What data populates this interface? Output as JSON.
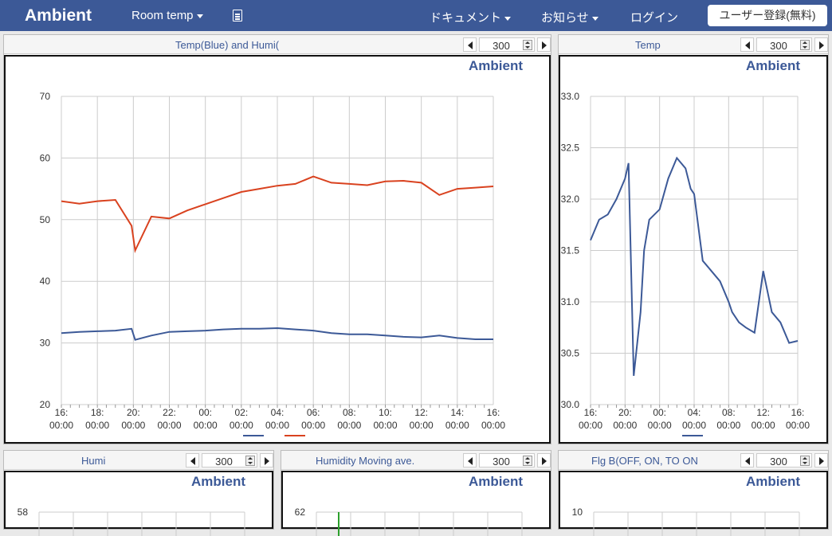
{
  "navbar": {
    "brand": "Ambient",
    "channel": "Room temp",
    "docs": "ドキュメント",
    "news": "お知らせ",
    "login": "ログイン",
    "signup": "ユーザー登録(無料)",
    "doc_icon": "document-icon"
  },
  "logo_text": "Ambient",
  "panels": [
    {
      "title": "Temp(Blue) and Humi(",
      "count": "300"
    },
    {
      "title": "Temp",
      "count": "300"
    },
    {
      "title": "Humi",
      "count": "300"
    },
    {
      "title": "Humidity Moving ave.",
      "count": "300"
    },
    {
      "title": "Flg B(OFF, ON, TO ON",
      "count": "300"
    }
  ],
  "colors": {
    "navbar": "#3c5997",
    "blue_series": "#3c5997",
    "red_series": "#d9421f",
    "green": "#2ca02c"
  },
  "chart_data": [
    {
      "type": "line",
      "title": "Temp(Blue) and Humi(",
      "ylim": [
        20,
        70
      ],
      "yticks": [
        "70",
        "60",
        "50",
        "40",
        "30",
        "20"
      ],
      "xticks": [
        "16:\n00:00",
        "18:\n00:00",
        "20:\n00:00",
        "22:\n00:00",
        "00:\n00:00",
        "02:\n00:00",
        "04:\n00:00",
        "06:\n00:00",
        "08:\n00:00",
        "10:\n00:00",
        "12:\n00:00",
        "14:\n00:00",
        "16:\n00:00"
      ],
      "x": [
        0,
        0.5,
        1,
        1.5,
        1.95,
        2.05,
        2.5,
        3,
        3.5,
        4,
        4.5,
        5,
        5.5,
        6,
        6.5,
        7,
        7.5,
        8,
        8.5,
        9,
        9.5,
        10,
        10.5,
        11,
        11.5,
        12
      ],
      "series": [
        {
          "color": "#3c5997",
          "values": [
            31.6,
            31.8,
            31.9,
            32.0,
            32.3,
            30.5,
            31.2,
            31.8,
            31.9,
            32.0,
            32.2,
            32.3,
            32.3,
            32.4,
            32.2,
            32.0,
            31.6,
            31.4,
            31.4,
            31.2,
            31.0,
            30.9,
            31.2,
            30.8,
            30.6,
            30.6
          ]
        },
        {
          "color": "#d9421f",
          "values": [
            53.0,
            52.6,
            53.0,
            53.2,
            49.0,
            45.0,
            50.5,
            50.2,
            51.5,
            52.5,
            53.5,
            54.5,
            55.0,
            55.5,
            55.8,
            57.0,
            56.0,
            55.8,
            55.6,
            56.2,
            56.3,
            56.0,
            54.0,
            55.0,
            55.2,
            55.4
          ]
        }
      ]
    },
    {
      "type": "line",
      "title": "Temp",
      "ylim": [
        30.0,
        33.0
      ],
      "yticks": [
        "33.0",
        "32.5",
        "32.0",
        "31.5",
        "31.0",
        "30.5",
        "30.0"
      ],
      "xticks": [
        "16:\n00:00",
        "20:\n00:00",
        "00:\n00:00",
        "04:\n00:00",
        "08:\n00:00",
        "12:\n00:00",
        "16:\n00:00"
      ],
      "x": [
        0,
        0.5,
        1,
        1.5,
        2,
        2.2,
        2.5,
        2.9,
        3.1,
        3.4,
        4,
        4.5,
        5,
        5.5,
        5.8,
        6,
        6.5,
        7,
        7.5,
        8,
        8.2,
        8.6,
        9,
        9.5,
        10,
        10.5,
        11,
        11.5,
        12
      ],
      "series": [
        {
          "color": "#3c5997",
          "values": [
            31.6,
            31.8,
            31.85,
            32.0,
            32.2,
            32.35,
            30.28,
            30.9,
            31.5,
            31.8,
            31.9,
            32.2,
            32.4,
            32.3,
            32.1,
            32.05,
            31.4,
            31.3,
            31.2,
            31.0,
            30.9,
            30.8,
            30.75,
            30.7,
            31.3,
            30.9,
            30.8,
            30.6,
            30.62
          ]
        }
      ]
    },
    {
      "type": "line",
      "title": "Humi",
      "yticks": [
        "58"
      ]
    },
    {
      "type": "line",
      "title": "Humidity Moving ave.",
      "yticks": [
        "62"
      ]
    },
    {
      "type": "line",
      "title": "Flg B(OFF, ON, TO ON",
      "yticks": [
        "10"
      ]
    }
  ]
}
